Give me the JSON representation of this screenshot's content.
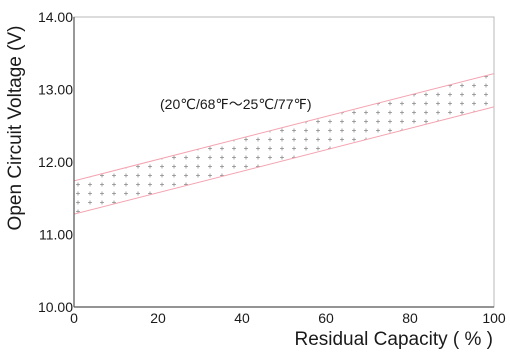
{
  "chart_data": {
    "type": "area",
    "title": "",
    "xlabel": "Residual Capacity ( % )",
    "ylabel": "Open Circuit Voltage (V)",
    "xlim": [
      0,
      100
    ],
    "ylim": [
      10.0,
      14.0
    ],
    "xticks": [
      "0",
      "20",
      "40",
      "60",
      "80",
      "100"
    ],
    "yticks": [
      "10.00",
      "11.00",
      "12.00",
      "13.00",
      "14.00"
    ],
    "grid": false,
    "annotation": "(20℃/68℉～25℃/77℉)",
    "band": {
      "fill": "hatched-plus",
      "upper": {
        "x": [
          0,
          100
        ],
        "y": [
          11.74,
          13.22
        ]
      },
      "lower": {
        "x": [
          0,
          100
        ],
        "y": [
          11.28,
          12.76
        ]
      }
    },
    "colors": {
      "band_line": "#f4a3b0",
      "hatch": "#8a8a8a",
      "axis": "#555555",
      "text": "#1a1a1a"
    }
  }
}
